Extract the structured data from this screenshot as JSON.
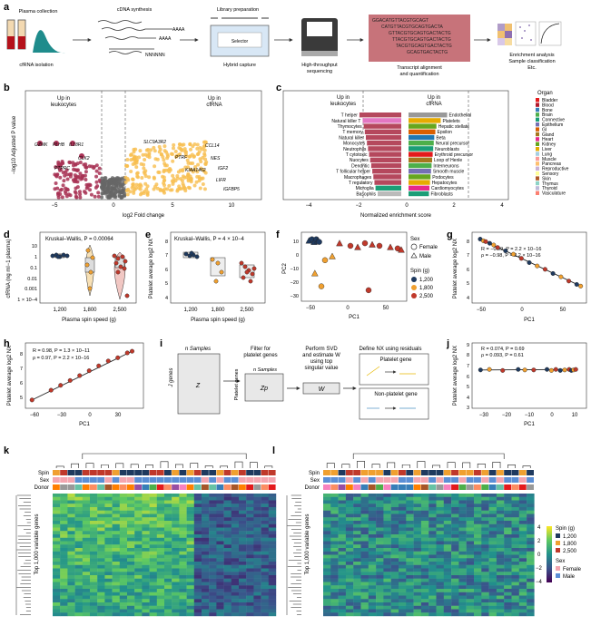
{
  "panels": {
    "a": {
      "label": "a",
      "steps": [
        "Plasma collection",
        "cfRNA isolation",
        "cDNA synthesis",
        "Library preparation",
        "Hybrid capture",
        "High-throughput",
        "sequencing",
        "Transcript alignment",
        "and quantification",
        "Enrichment analysis",
        "Sample classification",
        "Etc."
      ],
      "selector_label": "Selector",
      "sequences": [
        "GGACATGTTACGTGCAGT",
        "CATGTTACGTGCAGTGACTA",
        "GTTACGTGCAGTGACTACTG",
        "TTACGTGCAGTGACTACTG",
        "TACGTGCAGTGACTACTG",
        "GCAGTGACTACTG"
      ],
      "cdna_tail": [
        "AAAA",
        "AAAA",
        "NNNNNN"
      ]
    },
    "b": {
      "label": "b",
      "left_group": [
        "Up in",
        "leukocytes"
      ],
      "right_group": [
        "Up in",
        "cfRNA"
      ],
      "ylabel": "−log10 Adjusted P value",
      "xlabel": "log2 Fold change",
      "xticks": [
        "−5",
        "0",
        "5",
        "10"
      ],
      "genes_left": [
        "GZMK",
        "PLHB",
        "IL18R1",
        "PTPRC",
        "CLK2"
      ],
      "genes_right": [
        "SLC9A3R2",
        "CCL14",
        "PTRF",
        "NES",
        "KIAA1462",
        "IGF2",
        "LIFR",
        "IGFBP5"
      ]
    },
    "c": {
      "label": "c",
      "left_group": [
        "Up in",
        "leukocytes"
      ],
      "right_group": [
        "Up in",
        "cfRNA"
      ],
      "xlabel": "Normalized enrichment score",
      "xticks": [
        "−4",
        "−2",
        "0",
        "2",
        "4"
      ],
      "left_cells": [
        "T helper",
        "Natural killer T",
        "Thymocytes",
        "T memory",
        "Natural killer",
        "Monocytes",
        "Neutrophils",
        "T cytotoxic",
        "Nuocytes",
        "Dendritic",
        "T follicular helper",
        "Macrophages",
        "T regulatory",
        "Microglia",
        "Basophils"
      ],
      "right_cells": [
        "Endothelial",
        "Platelets",
        "Hepatic stellate",
        "Epsilon",
        "Beta",
        "Neural precursor",
        "Neuroblasts",
        "Erythroid precursor",
        "Loop of Henle",
        "Interneurons",
        "Smooth muscle",
        "Podocytes",
        "Hepatocytes",
        "Cardiomyocytes",
        "Fibroblasts"
      ],
      "organ_title": "Organ",
      "organs": [
        {
          "name": "Bladder",
          "color": "#e41a1c"
        },
        {
          "name": "Blood",
          "color": "#b2182b"
        },
        {
          "name": "Bone",
          "color": "#377eb8"
        },
        {
          "name": "Brain",
          "color": "#4daf4a"
        },
        {
          "name": "Connective",
          "color": "#1b9e77"
        },
        {
          "name": "Epithelium",
          "color": "#7570b3"
        },
        {
          "name": "GI",
          "color": "#d95f02"
        },
        {
          "name": "Gland",
          "color": "#a6761d"
        },
        {
          "name": "Heart",
          "color": "#e7298a"
        },
        {
          "name": "Kidney",
          "color": "#66a61e"
        },
        {
          "name": "Liver",
          "color": "#e6ab02"
        },
        {
          "name": "Lung",
          "color": "#a6cee3"
        },
        {
          "name": "Muscle",
          "color": "#fb9a99"
        },
        {
          "name": "Pancreas",
          "color": "#fdbf6f"
        },
        {
          "name": "Reproductive",
          "color": "#cab2d6"
        },
        {
          "name": "Sensory",
          "color": "#ffff99"
        },
        {
          "name": "Skin",
          "color": "#b15928"
        },
        {
          "name": "Thymus",
          "color": "#8dd3c7"
        },
        {
          "name": "Thyroid",
          "color": "#bebada"
        },
        {
          "name": "Vasculature",
          "color": "#fb8072"
        }
      ]
    },
    "d": {
      "label": "d",
      "stat": "Kruskal–Wallis, P = 0.00064",
      "ylabel": "cfRNA (ng ml−1 plasma)",
      "xlabel": "Plasma spin speed (g)",
      "xticks": [
        "1,200",
        "1,800",
        "2,500"
      ],
      "yticks": [
        "10",
        "1",
        "0.1",
        "0.01",
        "0.001",
        "1 × 10−4"
      ]
    },
    "e": {
      "label": "e",
      "stat": "Kruskal–Wallis, P = 4 × 10−4",
      "ylabel": "Platelet average log2 NX",
      "xlabel": "Plasma spin speed (g)",
      "xticks": [
        "1,200",
        "1,800",
        "2,500"
      ],
      "yticks": [
        "8",
        "7",
        "6",
        "5",
        "4"
      ]
    },
    "f": {
      "label": "f",
      "xlabel": "PC1",
      "ylabel": "PC2",
      "xticks": [
        "−50",
        "0",
        "50"
      ],
      "yticks": [
        "10",
        "0",
        "−10",
        "−20",
        "−30"
      ],
      "sex_title": "Sex",
      "sex_items": [
        "Female",
        "Male"
      ],
      "spin_title": "Spin (g)",
      "spin_items": [
        {
          "name": "1,200",
          "color": "#1f3a5f"
        },
        {
          "name": "1,800",
          "color": "#f0a030"
        },
        {
          "name": "2,500",
          "color": "#c0392b"
        }
      ]
    },
    "g": {
      "label": "g",
      "stat1": "R = −0.99, P = 2.2 × 10−16",
      "stat2": "ρ = −0.98, P = 2.2 × 10−16",
      "xlabel": "PC1",
      "ylabel": "Platelet average log2 NX",
      "xticks": [
        "−50",
        "0",
        "50"
      ],
      "yticks": [
        "8",
        "7",
        "6",
        "5",
        "4"
      ]
    },
    "h": {
      "label": "h",
      "stat1": "R = 0.98, P = 1.3 × 10−11",
      "stat2": "ρ = 0.97, P = 2.2 × 10−16",
      "xlabel": "PC1",
      "ylabel": "Platelet average log2 NX",
      "xticks": [
        "−60",
        "−30",
        "0",
        "30"
      ],
      "yticks": [
        "8",
        "7",
        "6",
        "5"
      ]
    },
    "i": {
      "label": "i",
      "n_samples": "n Samples",
      "j_genes": "J genes",
      "filter": [
        "Filter for",
        "platelet genes"
      ],
      "svd": [
        "Perform SVD",
        "and estimate W",
        "using top",
        "singular value"
      ],
      "define": "Define NX using residuals",
      "platelet_gene": "Platelet gene",
      "nonplatelet_gene": "Non-platelet gene",
      "z": "Z",
      "zp": "Zp",
      "w": "W",
      "platelet_genes_side": "Platelet genes"
    },
    "j": {
      "label": "j",
      "stat1": "R = 0.074, P = 0.69",
      "stat2": "ρ = 0.093, P = 0.61",
      "xlabel": "PC1",
      "ylabel": "Platelet average log2 NX",
      "xticks": [
        "−30",
        "−20",
        "−10",
        "0",
        "10"
      ],
      "yticks": [
        "9",
        "8",
        "7",
        "6",
        "5",
        "4",
        "3"
      ]
    },
    "k": {
      "label": "k",
      "row_labels": [
        "Spin",
        "Sex",
        "Donor"
      ],
      "ylabel": "Top 1,000 variable genes"
    },
    "l": {
      "label": "l",
      "row_labels": [
        "Spin",
        "Sex",
        "Donor"
      ],
      "ylabel": "Top 1,000 variable genes",
      "scale_ticks": [
        "4",
        "2",
        "0",
        "−2",
        "−4"
      ],
      "spin_title": "Spin (g)",
      "spin_items": [
        "1,200",
        "1,800",
        "2,500"
      ],
      "sex_title": "Sex",
      "sex_items": [
        "Female",
        "Male"
      ]
    }
  },
  "chart_data": [
    {
      "type": "scatter",
      "panel": "f",
      "title": "",
      "xlabel": "PC1",
      "ylabel": "PC2",
      "xlim": [
        -60,
        80
      ],
      "ylim": [
        -35,
        15
      ],
      "series": [
        {
          "name": "1,200",
          "x": [
            -52,
            -48,
            -45,
            -42,
            -40,
            -38
          ],
          "y": [
            10,
            11,
            9,
            11,
            10,
            9
          ]
        },
        {
          "name": "1,800",
          "x": [
            -44,
            -30,
            -20,
            -35
          ],
          "y": [
            -15,
            -5,
            -2,
            -25
          ]
        },
        {
          "name": "2,500",
          "x": [
            -10,
            5,
            15,
            25,
            35,
            45,
            60,
            70,
            75,
            30
          ],
          "y": [
            8,
            6,
            5,
            8,
            7,
            6,
            5,
            4,
            3,
            -28
          ]
        }
      ]
    },
    {
      "type": "scatter",
      "panel": "g",
      "xlabel": "PC1",
      "ylabel": "Platelet average log2 NX",
      "xlim": [
        -60,
        80
      ],
      "ylim": [
        4,
        8
      ],
      "x": [
        -52,
        -48,
        -45,
        -40,
        -35,
        -30,
        -20,
        -10,
        0,
        10,
        20,
        30,
        40,
        50,
        60,
        70,
        75
      ],
      "y": [
        7.7,
        7.6,
        7.55,
        7.45,
        7.35,
        7.2,
        7.0,
        6.8,
        6.55,
        6.3,
        6.1,
        5.9,
        5.65,
        5.45,
        5.2,
        5.0,
        4.9
      ]
    },
    {
      "type": "scatter",
      "panel": "h",
      "xlabel": "PC1",
      "ylabel": "Platelet average log2 NX",
      "xlim": [
        -65,
        55
      ],
      "ylim": [
        4.5,
        8.3
      ],
      "x": [
        -60,
        -40,
        -30,
        -20,
        -10,
        0,
        10,
        20,
        30,
        40,
        45
      ],
      "y": [
        4.9,
        5.5,
        5.8,
        6.1,
        6.4,
        6.7,
        7.0,
        7.3,
        7.5,
        7.8,
        7.9
      ]
    },
    {
      "type": "scatter",
      "panel": "j",
      "xlabel": "PC1",
      "ylabel": "Platelet average log2 NX",
      "xlim": [
        -35,
        15
      ],
      "ylim": [
        3,
        9
      ],
      "x": [
        -32,
        -28,
        -22,
        -15,
        -12,
        -8,
        -2,
        0,
        2,
        4,
        6,
        8,
        9,
        10,
        11
      ],
      "y": [
        6.55,
        6.6,
        6.5,
        6.6,
        6.55,
        6.55,
        6.6,
        6.5,
        6.6,
        6.5,
        6.55,
        6.6,
        6.5,
        6.55,
        6.6
      ]
    }
  ]
}
